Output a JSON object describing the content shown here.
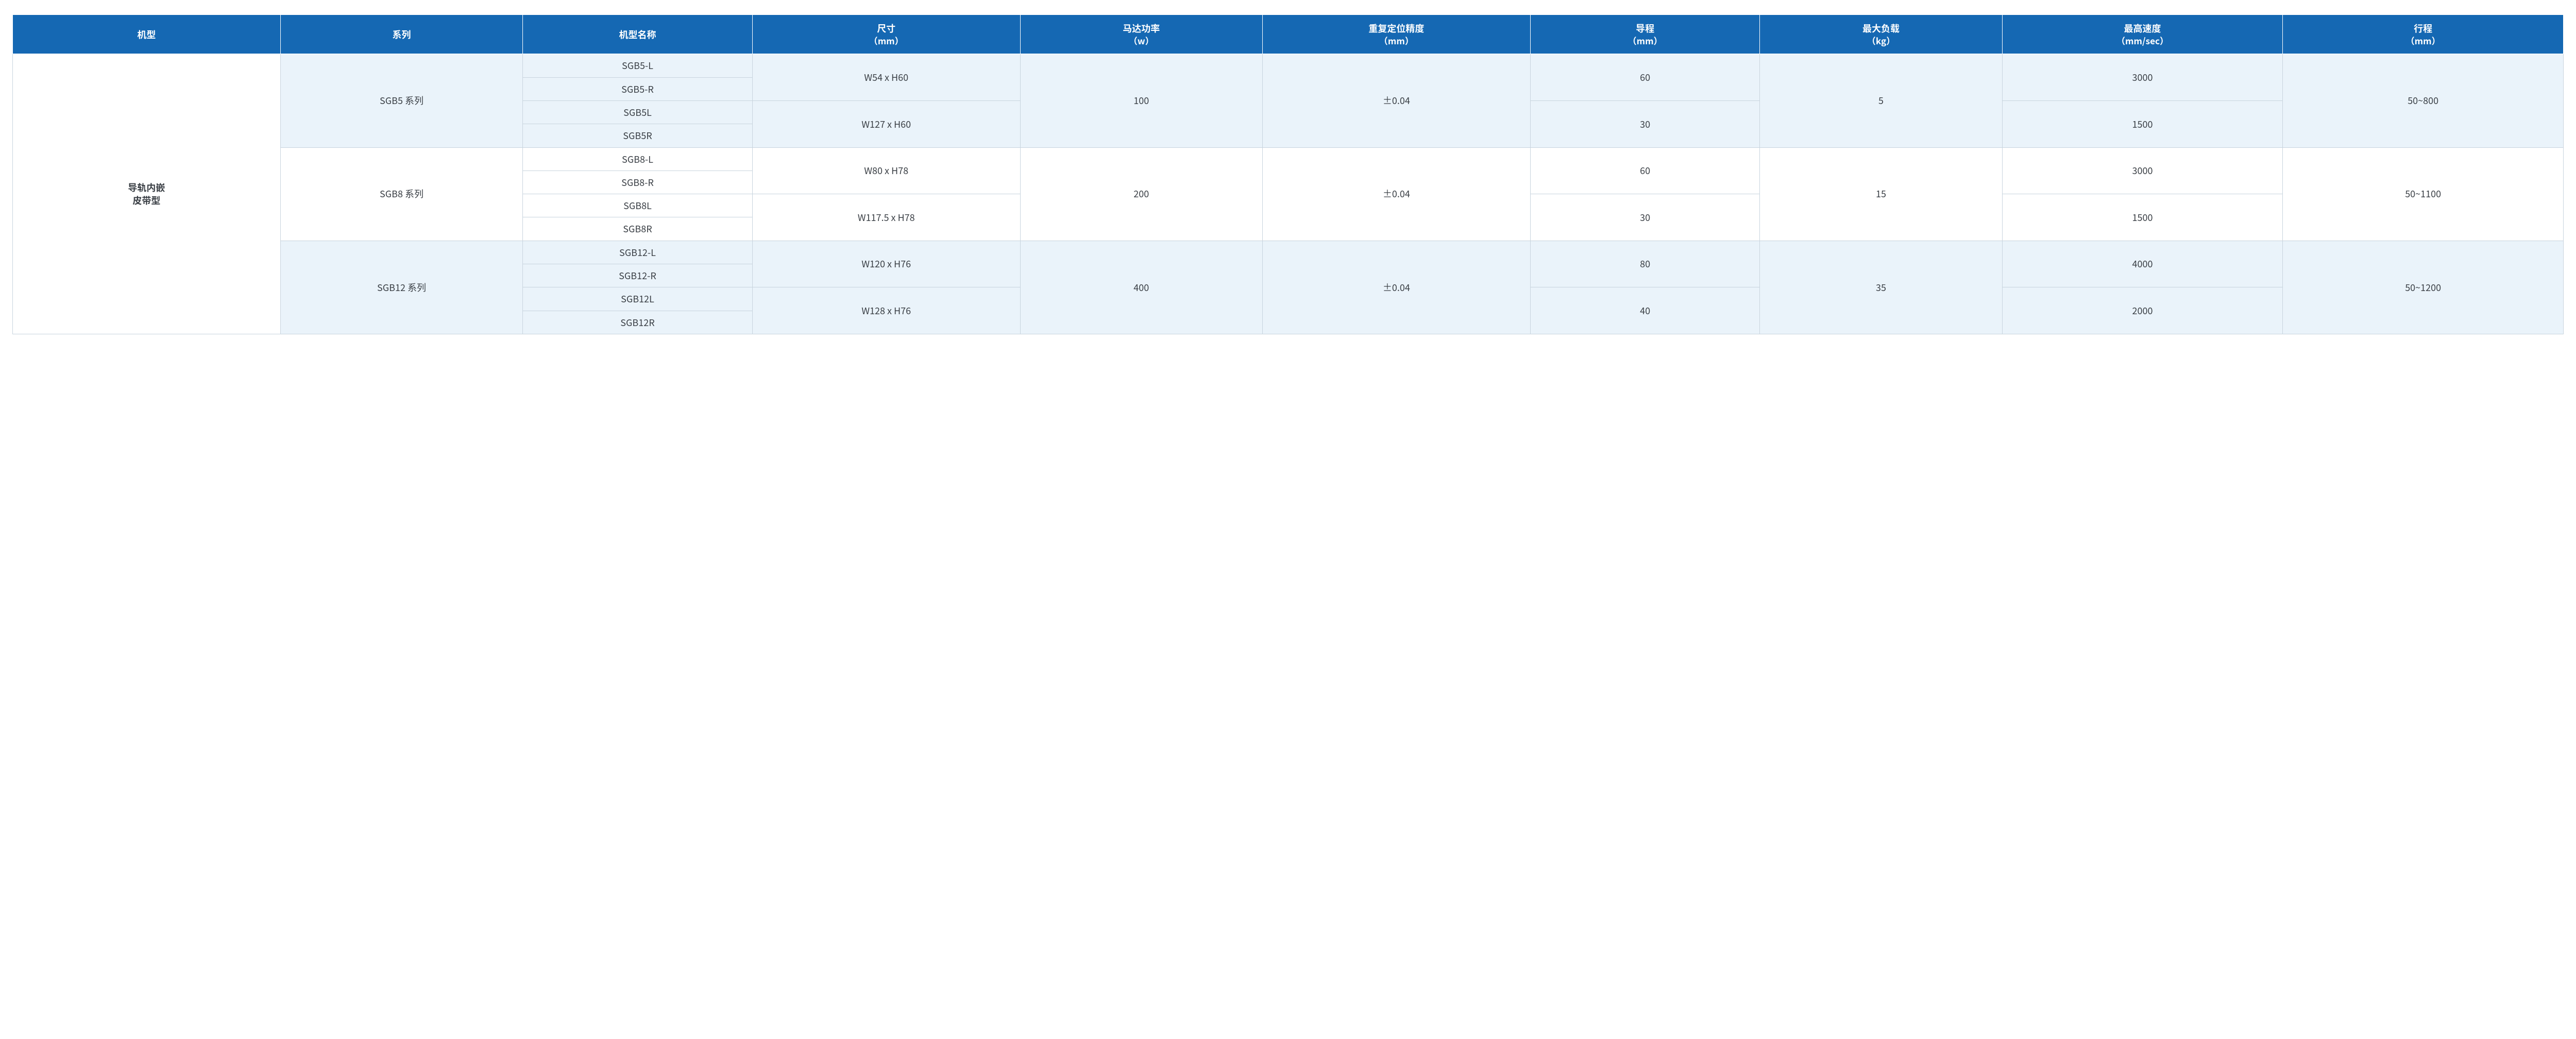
{
  "styling": {
    "header_bg": "#1568b3",
    "header_fg": "#ffffff",
    "alt_row_bg": "#eaf3fa",
    "plain_bg": "#ffffff",
    "border_color": "#c8d4de",
    "text_color": "#3a3f45",
    "fontsize_pt": 18,
    "font_family": "Microsoft YaHei / PingFang SC",
    "type": "table",
    "column_widths_pct": [
      10.5,
      9.5,
      9.0,
      10.5,
      9.5,
      10.5,
      9.0,
      9.5,
      11.0,
      11.0
    ]
  },
  "headers": {
    "machine_type": "机型",
    "series": "系列",
    "model_name": "机型名称",
    "size": "尺寸",
    "size_unit": "（mm）",
    "motor_power": "马达功率",
    "motor_power_unit": "（w）",
    "repeat_accuracy": "重复定位精度",
    "repeat_accuracy_unit": "（mm）",
    "lead": "导程",
    "lead_unit": "（mm）",
    "max_load": "最大负载",
    "max_load_unit": "（kg）",
    "max_speed": "最高速度",
    "max_speed_unit": "（mm/sec）",
    "stroke": "行程",
    "stroke_unit": "（mm）"
  },
  "body": {
    "machine_type_line1": "导轨内嵌",
    "machine_type_line2": "皮带型",
    "groups": [
      {
        "bg": "alt",
        "series": "SGB5 系列",
        "models": [
          "SGB5-L",
          "SGB5-R",
          "SGB5L",
          "SGB5R"
        ],
        "sizes": [
          "W54 x H60",
          "W127 x H60"
        ],
        "motor_power": "100",
        "repeat_accuracy": "±0.04",
        "leads": [
          "60",
          "30"
        ],
        "max_load": "5",
        "max_speeds": [
          "3000",
          "1500"
        ],
        "stroke": "50~800"
      },
      {
        "bg": "plain",
        "series": "SGB8 系列",
        "models": [
          "SGB8-L",
          "SGB8-R",
          "SGB8L",
          "SGB8R"
        ],
        "sizes": [
          "W80 x H78",
          "W117.5 x H78"
        ],
        "motor_power": "200",
        "repeat_accuracy": "±0.04",
        "leads": [
          "60",
          "30"
        ],
        "max_load": "15",
        "max_speeds": [
          "3000",
          "1500"
        ],
        "stroke": "50~1100"
      },
      {
        "bg": "alt",
        "series": "SGB12 系列",
        "models": [
          "SGB12-L",
          "SGB12-R",
          "SGB12L",
          "SGB12R"
        ],
        "sizes": [
          "W120 x H76",
          "W128 x H76"
        ],
        "motor_power": "400",
        "repeat_accuracy": "±0.04",
        "leads": [
          "80",
          "40"
        ],
        "max_load": "35",
        "max_speeds": [
          "4000",
          "2000"
        ],
        "stroke": "50~1200"
      }
    ]
  }
}
